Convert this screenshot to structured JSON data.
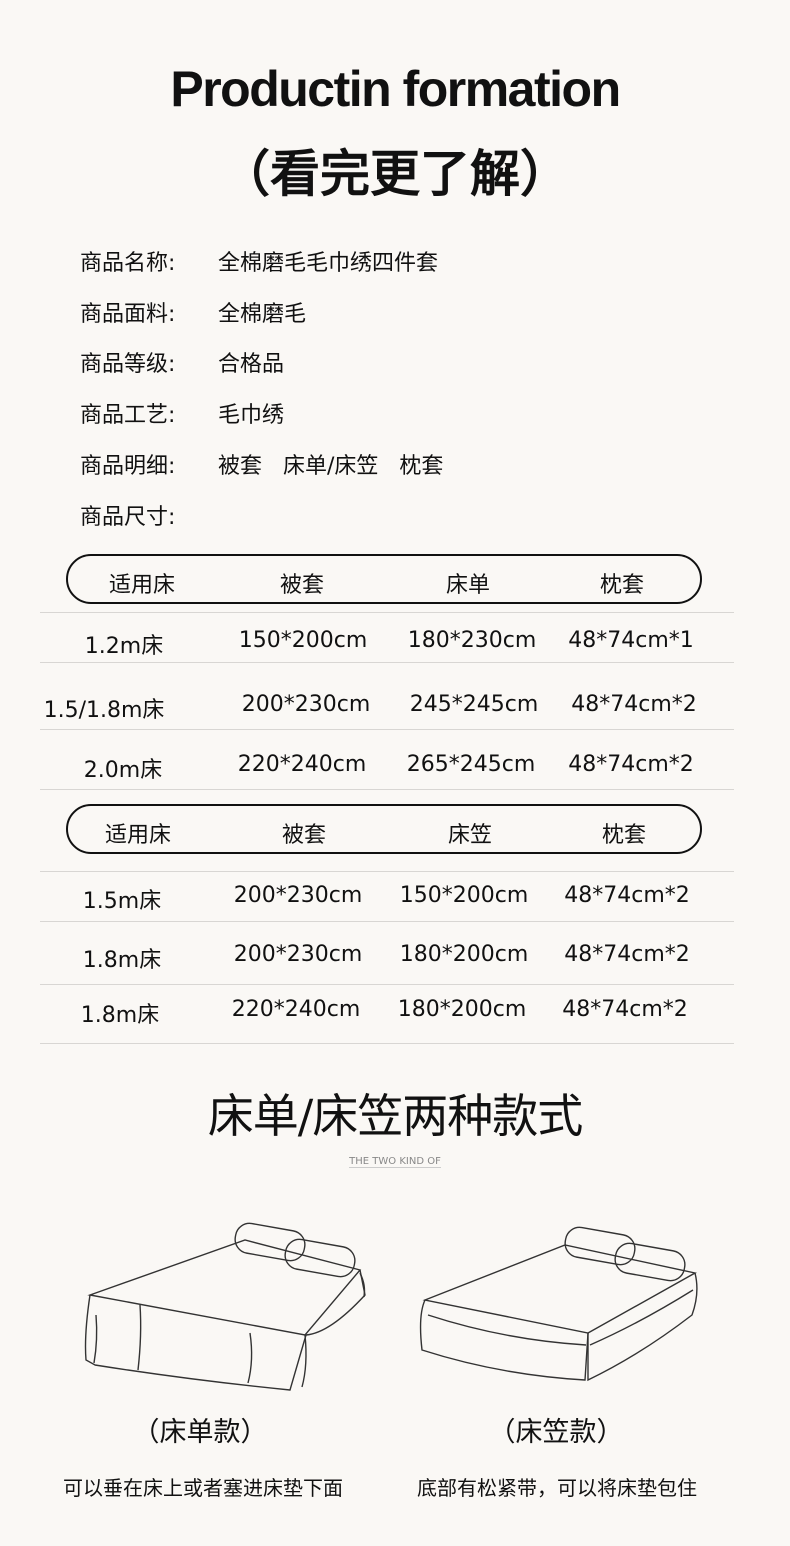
{
  "header": {
    "title": "Productin formation",
    "subtitle": "（看完更了解）"
  },
  "info": [
    {
      "label": "商品名称:",
      "value": "全棉磨毛毛巾绣四件套"
    },
    {
      "label": "商品面料:",
      "value": "全棉磨毛"
    },
    {
      "label": "商品等级:",
      "value": "合格品"
    },
    {
      "label": "商品工艺:",
      "value": "毛巾绣"
    },
    {
      "label": "商品明细:",
      "value": "被套 床单/床笠 枕套"
    },
    {
      "label": "商品尺寸:",
      "value": ""
    }
  ],
  "table1": {
    "headers": [
      "适用床",
      "被套",
      "床单",
      "枕套"
    ],
    "rows": [
      [
        "1.2m床",
        "150*200cm",
        "180*230cm",
        "48*74cm*1"
      ],
      [
        "1.5/1.8m床",
        "200*230cm",
        "245*245cm",
        "48*74cm*2"
      ],
      [
        "2.0m床",
        "220*240cm",
        "265*245cm",
        "48*74cm*2"
      ]
    ]
  },
  "table2": {
    "headers": [
      "适用床",
      "被套",
      "床笠",
      "枕套"
    ],
    "rows": [
      [
        "1.5m床",
        "200*230cm",
        "150*200cm",
        "48*74cm*2"
      ],
      [
        "1.8m床",
        "200*230cm",
        "180*200cm",
        "48*74cm*2"
      ],
      [
        "1.8m床",
        "220*240cm",
        "180*200cm",
        "48*74cm*2"
      ]
    ]
  },
  "kinds": {
    "title": "床单/床笠两种款式",
    "subtitle": "THE TWO KIND OF",
    "items": [
      {
        "label": "（床单款）",
        "caption": "可以垂在床上或者塞进床垫下面"
      },
      {
        "label": "（床笠款）",
        "caption": "底部有松紧带，可以将床垫包住"
      }
    ]
  }
}
